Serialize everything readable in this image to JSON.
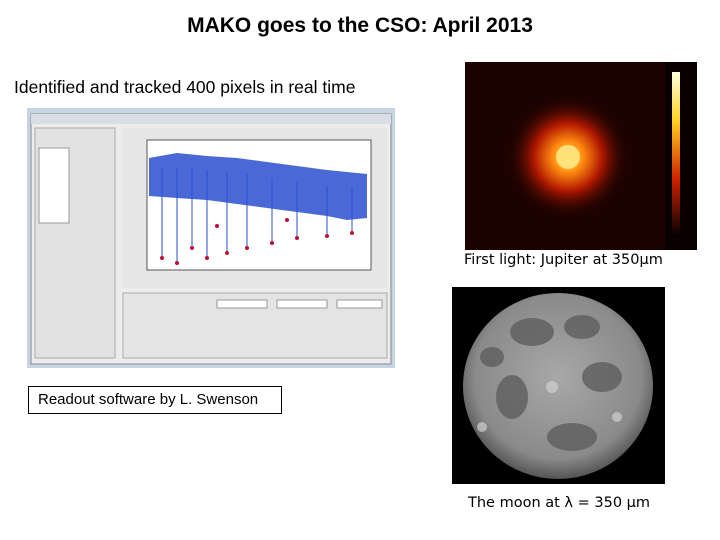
{
  "header": {
    "title": "MAKO goes to the CSO: April 2013"
  },
  "left": {
    "subtitle": "Identified and tracked 400 pixels in real time",
    "credit": "Readout software by L. Swenson"
  },
  "right": {
    "jupiter_caption": "First light: Jupiter at 350μm",
    "moon_caption": "The moon at λ = 350 μm"
  }
}
